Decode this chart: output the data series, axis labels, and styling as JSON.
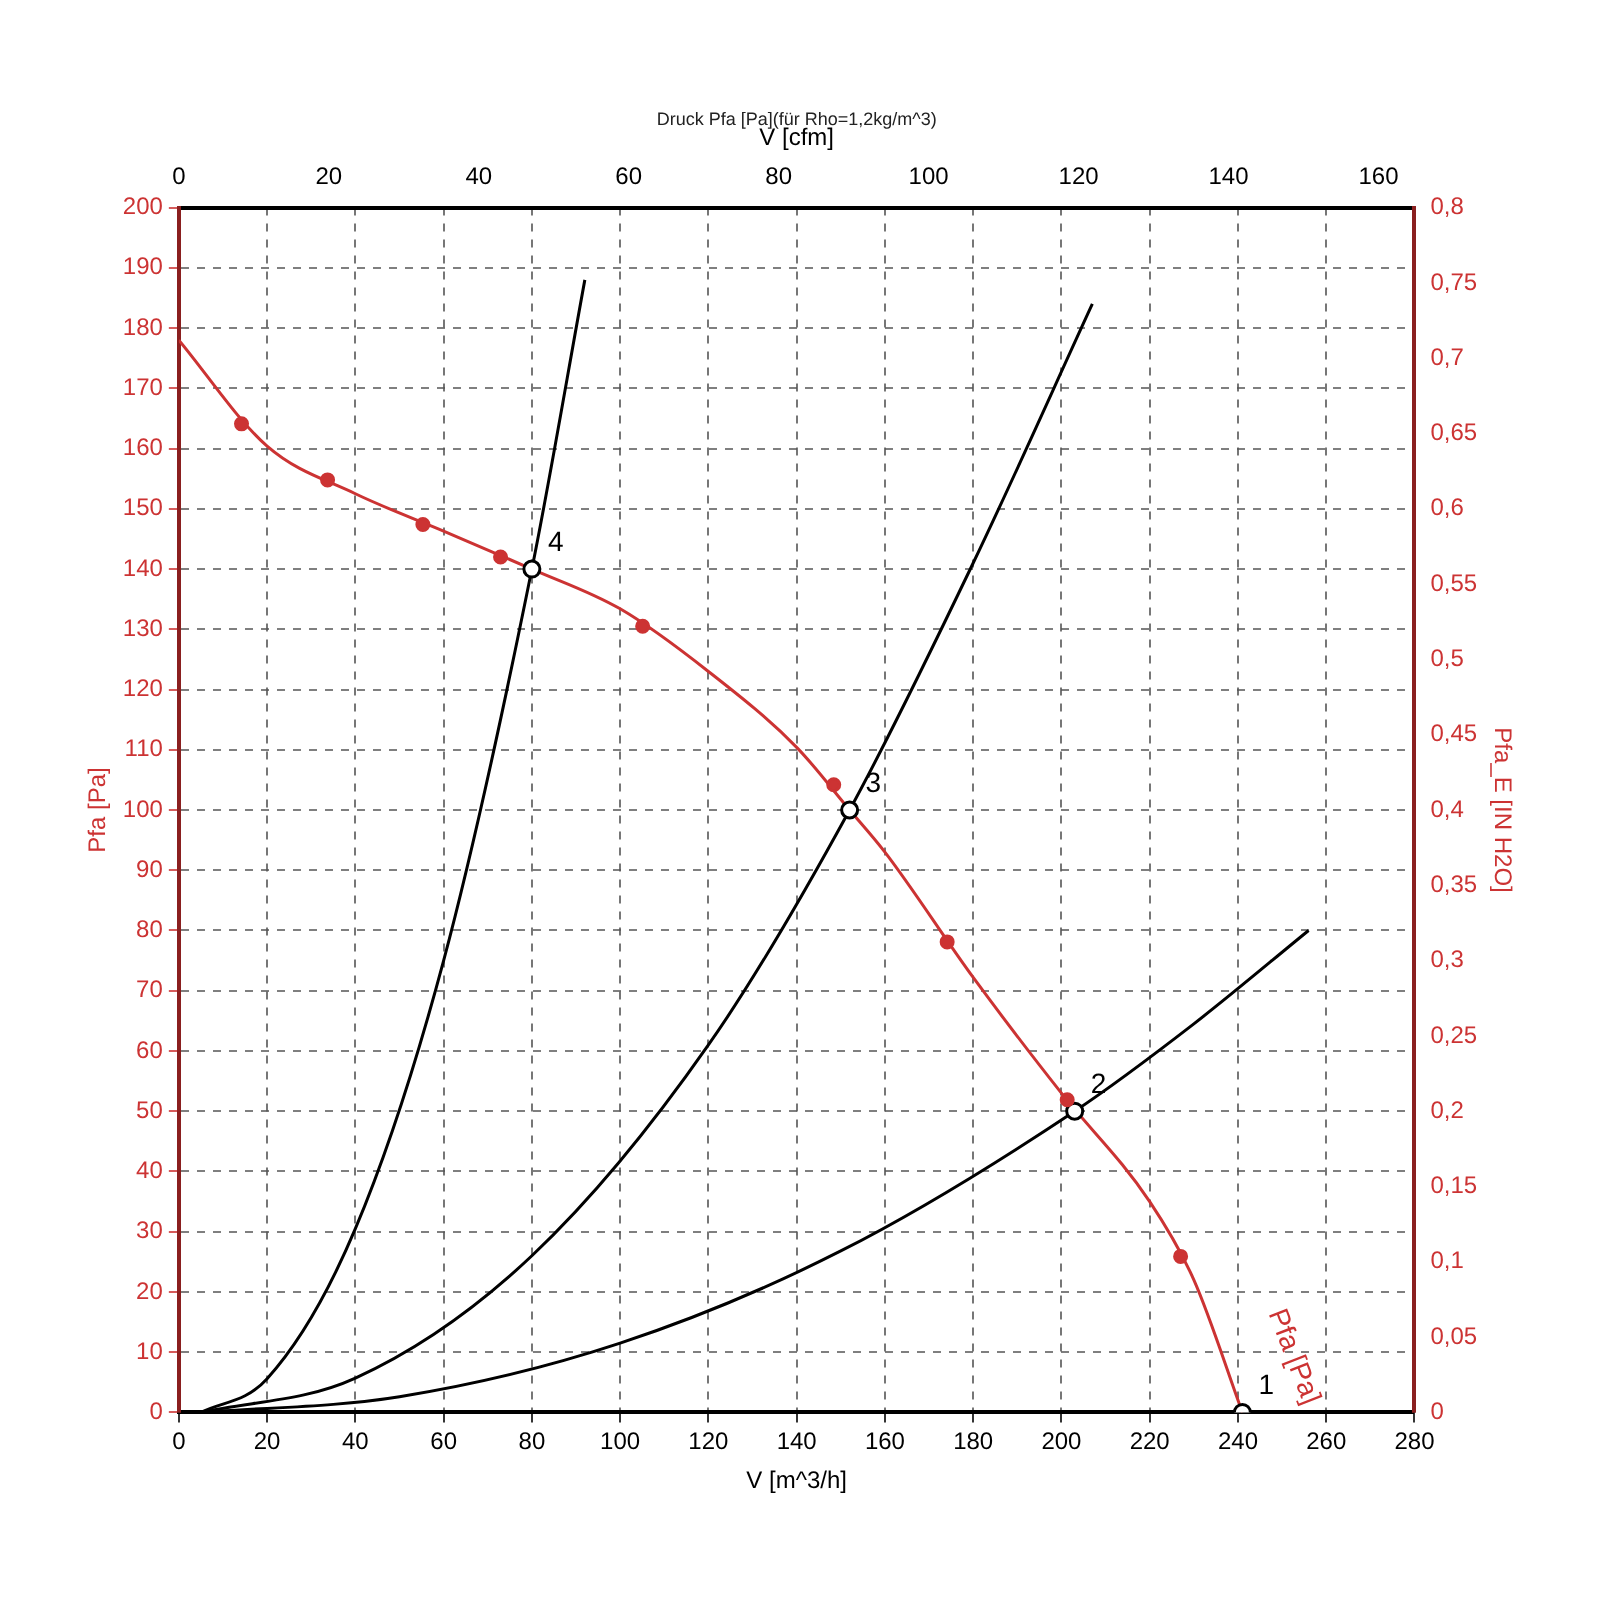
{
  "chart_data": {
    "type": "line",
    "title": "Druck Pfa [Pa](für Rho=1,2kg/m^3)",
    "xlabel": "V [m^3/h]",
    "ylabel": "Pfa [Pa]",
    "y2label": "Pfa_E [IN H2O]",
    "x2label": "V [cfm]",
    "xlim": [
      0,
      280
    ],
    "xticks": [
      0,
      20,
      40,
      60,
      80,
      100,
      120,
      140,
      160,
      180,
      200,
      220,
      240,
      260,
      280
    ],
    "ylim": [
      0,
      200
    ],
    "yticks": [
      0,
      10,
      20,
      30,
      40,
      50,
      60,
      70,
      80,
      90,
      100,
      110,
      120,
      130,
      140,
      150,
      160,
      170,
      180,
      190,
      200
    ],
    "y2lim": [
      0,
      0.8
    ],
    "y2ticks": [
      0,
      {
        "value": 0.05,
        "label": "0,05"
      },
      {
        "value": 0.1,
        "label": "0,1"
      },
      {
        "value": 0.15,
        "label": "0,15"
      },
      {
        "value": 0.2,
        "label": "0,2"
      },
      {
        "value": 0.25,
        "label": "0,25"
      },
      {
        "value": 0.3,
        "label": "0,3"
      },
      {
        "value": 0.35,
        "label": "0,35"
      },
      {
        "value": 0.4,
        "label": "0,4"
      },
      {
        "value": 0.45,
        "label": "0,45"
      },
      {
        "value": 0.5,
        "label": "0,5"
      },
      {
        "value": 0.55,
        "label": "0,55"
      },
      {
        "value": 0.6,
        "label": "0,6"
      },
      {
        "value": 0.65,
        "label": "0,65"
      },
      {
        "value": 0.7,
        "label": "0,7"
      },
      {
        "value": 0.75,
        "label": "0,75"
      },
      {
        "value": 0.8,
        "label": "0,8"
      }
    ],
    "x2lim": [
      0,
      164.8
    ],
    "x2ticks": [
      0,
      20,
      40,
      60,
      80,
      100,
      120,
      140,
      160
    ],
    "grid": true,
    "legend": false,
    "series": [
      {
        "name": "Pfa [Pa]",
        "color": "#cc3333",
        "marker": "none",
        "x": [
          0,
          20,
          40,
          60,
          80,
          100,
          120,
          140,
          152,
          160,
          180,
          200,
          220,
          230,
          241
        ],
        "values": [
          178,
          160.4,
          152.5,
          146.3,
          140,
          133.4,
          123,
          110.4,
          100,
          93,
          72.2,
          53,
          35,
          22,
          0
        ]
      },
      {
        "type": "scatter",
        "color": "#cc3333",
        "marker": "circle",
        "x": [
          14.2,
          33.7,
          55.3,
          72.9,
          105.1,
          148.4,
          174.1,
          201.3,
          227
        ],
        "values": [
          164.1,
          154.8,
          147.4,
          142,
          130.5,
          104.2,
          78.1,
          51.9,
          25.9
        ]
      },
      {
        "color": "#000000",
        "marker": "none",
        "x": [
          5,
          20,
          40,
          60,
          80,
          92
        ],
        "values": [
          0,
          5.6,
          30.5,
          75,
          140,
          188
        ]
      },
      {
        "color": "#000000",
        "marker": "none",
        "x": [
          5,
          40,
          80,
          120,
          152,
          180,
          207
        ],
        "values": [
          0,
          5.7,
          26,
          61,
          100,
          141,
          184
        ]
      },
      {
        "color": "#000000",
        "marker": "none",
        "x": [
          5,
          50,
          100,
          150,
          203,
          230,
          256
        ],
        "values": [
          0,
          2.6,
          11.5,
          26.8,
          50,
          64.5,
          80
        ]
      },
      {
        "type": "scatter",
        "color": "#000000",
        "marker": "circle",
        "x": [
          241,
          203,
          152,
          80
        ],
        "values": [
          0,
          50,
          100,
          140
        ]
      }
    ],
    "annotations": [
      {
        "text": "1",
        "x": 241,
        "y": 0
      },
      {
        "text": "2",
        "x": 203,
        "y": 50
      },
      {
        "text": "3",
        "x": 152,
        "y": 100
      },
      {
        "text": "4",
        "x": 80,
        "y": 140
      }
    ]
  }
}
